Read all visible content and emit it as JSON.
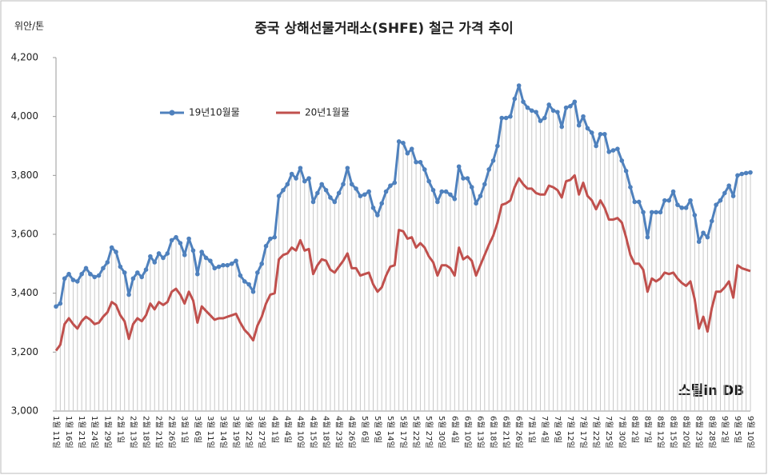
{
  "chart_data": {
    "type": "line",
    "title": "중국 상해선물거래소(SHFE) 철근 가격 추이",
    "y_axis_label": "위안/톤",
    "watermark": "스틸in DB",
    "legend_position": "upper left",
    "grid": false,
    "ylim": [
      3000,
      4200
    ],
    "yticks": [
      {
        "value": 3000,
        "label": "3,000"
      },
      {
        "value": 3200,
        "label": "3,200"
      },
      {
        "value": 3400,
        "label": "3,400"
      },
      {
        "value": 3600,
        "label": "3,600"
      },
      {
        "value": 3800,
        "label": "3,800"
      },
      {
        "value": 4000,
        "label": "4,000"
      },
      {
        "value": 4200,
        "label": "4,200"
      }
    ],
    "categories": [
      "1월 11일",
      null,
      null,
      "1월 16일",
      null,
      null,
      "1월 21일",
      null,
      null,
      "1월 24일",
      null,
      null,
      "1월 29일",
      null,
      null,
      "2월 1일",
      null,
      null,
      "2월 13일",
      null,
      null,
      "2월 18일",
      null,
      null,
      "2월 21일",
      null,
      null,
      "2월 26일",
      null,
      null,
      "3월 1일",
      null,
      null,
      "3월 6일",
      null,
      null,
      "3월 11일",
      null,
      null,
      "3월 14일",
      null,
      null,
      "3월 19일",
      null,
      null,
      "3월 22일",
      null,
      null,
      "3월 27일",
      null,
      null,
      "4월 1일",
      null,
      null,
      "4월 4일",
      null,
      null,
      "4월 10일",
      null,
      null,
      "4월 15일",
      null,
      null,
      "4월 18일",
      null,
      null,
      "4월 23일",
      null,
      null,
      "4월 26일",
      null,
      null,
      "5월 6일",
      null,
      null,
      "5월 9일",
      null,
      null,
      "5월 14일",
      null,
      null,
      "5월 17일",
      null,
      null,
      "5월 22일",
      null,
      null,
      "5월 27일",
      null,
      null,
      "5월 30일",
      null,
      null,
      "6월 4일",
      null,
      null,
      "6월 10일",
      null,
      null,
      "6월 13일",
      null,
      null,
      "6월 18일",
      null,
      null,
      "6월 21일",
      null,
      null,
      "6월 26일",
      null,
      null,
      "7월 1일",
      null,
      null,
      "7월 4일",
      null,
      null,
      "7월 9일",
      null,
      null,
      "7월 12일",
      null,
      null,
      "7월 17일",
      null,
      null,
      "7월 22일",
      null,
      null,
      "7월 25일",
      null,
      null,
      "7월 30일",
      null,
      null,
      "8월 2일",
      null,
      null,
      "8월 7일",
      null,
      null,
      "8월 12일",
      null,
      null,
      "8월 15일",
      null,
      null,
      "8월 20일",
      null,
      null,
      "8월 23일",
      null,
      null,
      "8월 28일",
      null,
      null,
      "9월 2일",
      null,
      null,
      "9월 5일",
      null,
      null,
      "9월 10일"
    ],
    "series": [
      {
        "name": "19년10월물",
        "color": "#4f81bd",
        "marker": true,
        "values": [
          3355,
          3365,
          3450,
          3465,
          3445,
          3440,
          3465,
          3485,
          3465,
          3455,
          3460,
          3485,
          3505,
          3555,
          3540,
          3490,
          3470,
          3395,
          3450,
          3470,
          3455,
          3480,
          3525,
          3505,
          3535,
          3520,
          3535,
          3580,
          3590,
          3570,
          3530,
          3585,
          3545,
          3465,
          3540,
          3520,
          3510,
          3485,
          3490,
          3495,
          3495,
          3500,
          3510,
          3460,
          3440,
          3430,
          3405,
          3470,
          3500,
          3560,
          3585,
          3590,
          3730,
          3750,
          3770,
          3805,
          3790,
          3825,
          3780,
          3790,
          3710,
          3740,
          3770,
          3750,
          3725,
          3710,
          3740,
          3770,
          3825,
          3770,
          3755,
          3730,
          3735,
          3745,
          3690,
          3665,
          3705,
          3745,
          3765,
          3775,
          3915,
          3910,
          3875,
          3890,
          3845,
          3845,
          3820,
          3780,
          3750,
          3710,
          3745,
          3745,
          3735,
          3720,
          3830,
          3790,
          3790,
          3760,
          3705,
          3730,
          3770,
          3820,
          3850,
          3900,
          3995,
          3995,
          4000,
          4060,
          4105,
          4050,
          4030,
          4020,
          4015,
          3985,
          3995,
          4040,
          4020,
          4015,
          3965,
          4030,
          4035,
          4050,
          3970,
          4000,
          3960,
          3945,
          3900,
          3940,
          3940,
          3880,
          3885,
          3890,
          3850,
          3815,
          3760,
          3710,
          3710,
          3675,
          3590,
          3675,
          3675,
          3675,
          3715,
          3715,
          3745,
          3700,
          3690,
          3690,
          3715,
          3665,
          3575,
          3605,
          3590,
          3645,
          3700,
          3715,
          3740,
          3765,
          3730,
          3800,
          3805,
          3808,
          3810
        ]
      },
      {
        "name": "20년1월물",
        "color": "#c0504d",
        "marker": false,
        "values": [
          3205,
          3225,
          3295,
          3315,
          3295,
          3280,
          3305,
          3320,
          3310,
          3295,
          3300,
          3320,
          3335,
          3370,
          3360,
          3325,
          3305,
          3245,
          3295,
          3315,
          3305,
          3325,
          3365,
          3345,
          3370,
          3360,
          3370,
          3405,
          3415,
          3395,
          3365,
          3405,
          3375,
          3300,
          3355,
          3340,
          3325,
          3310,
          3315,
          3315,
          3320,
          3325,
          3330,
          3300,
          3275,
          3260,
          3240,
          3290,
          3320,
          3365,
          3395,
          3400,
          3515,
          3530,
          3535,
          3555,
          3545,
          3580,
          3545,
          3550,
          3465,
          3495,
          3515,
          3510,
          3480,
          3470,
          3490,
          3510,
          3535,
          3485,
          3485,
          3460,
          3465,
          3470,
          3430,
          3405,
          3420,
          3460,
          3490,
          3495,
          3615,
          3610,
          3585,
          3590,
          3555,
          3570,
          3555,
          3525,
          3505,
          3460,
          3495,
          3495,
          3485,
          3460,
          3555,
          3515,
          3525,
          3510,
          3460,
          3495,
          3530,
          3565,
          3595,
          3640,
          3700,
          3705,
          3715,
          3760,
          3790,
          3770,
          3755,
          3755,
          3740,
          3735,
          3735,
          3765,
          3760,
          3750,
          3725,
          3780,
          3785,
          3800,
          3735,
          3775,
          3730,
          3715,
          3685,
          3715,
          3690,
          3650,
          3650,
          3655,
          3640,
          3590,
          3530,
          3500,
          3500,
          3480,
          3405,
          3450,
          3440,
          3450,
          3470,
          3465,
          3470,
          3450,
          3435,
          3425,
          3440,
          3380,
          3280,
          3320,
          3270,
          3350,
          3405,
          3405,
          3420,
          3440,
          3385,
          3495,
          3485,
          3480,
          3475
        ]
      }
    ]
  }
}
